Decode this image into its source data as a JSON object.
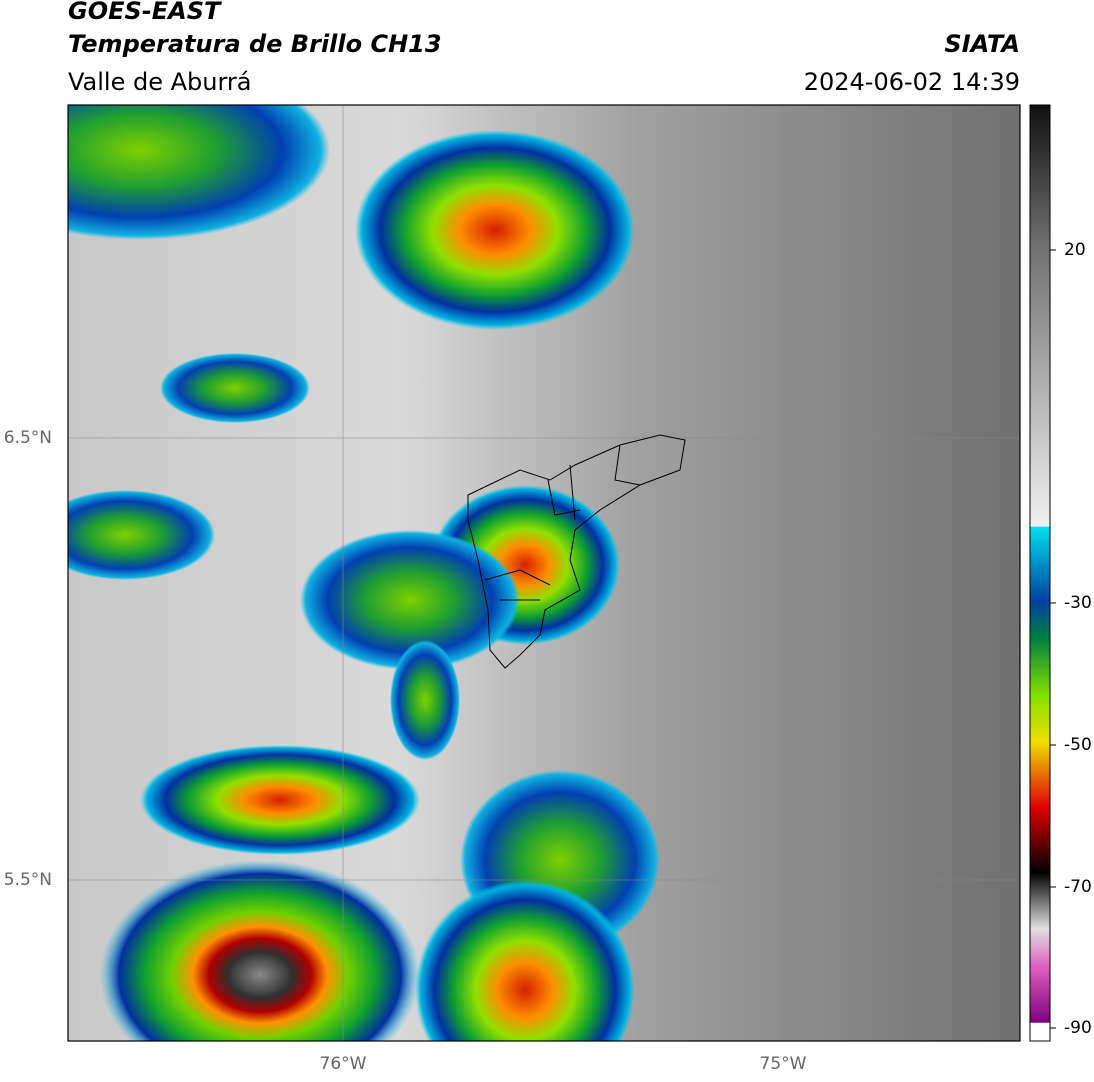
{
  "header": {
    "source": "GOES-EAST",
    "title": "Temperatura de Brillo CH13",
    "organization": "SIATA",
    "region": "Valle de Aburrá",
    "timestamp": "2024-06-02 14:39"
  },
  "map": {
    "latitude_labels": [
      "6.5°N",
      "5.5°N"
    ],
    "longitude_labels": [
      "76°W",
      "75°W"
    ]
  },
  "colorbar": {
    "tick_labels": [
      "20",
      "-30",
      "-50",
      "-70",
      "-90"
    ]
  }
}
